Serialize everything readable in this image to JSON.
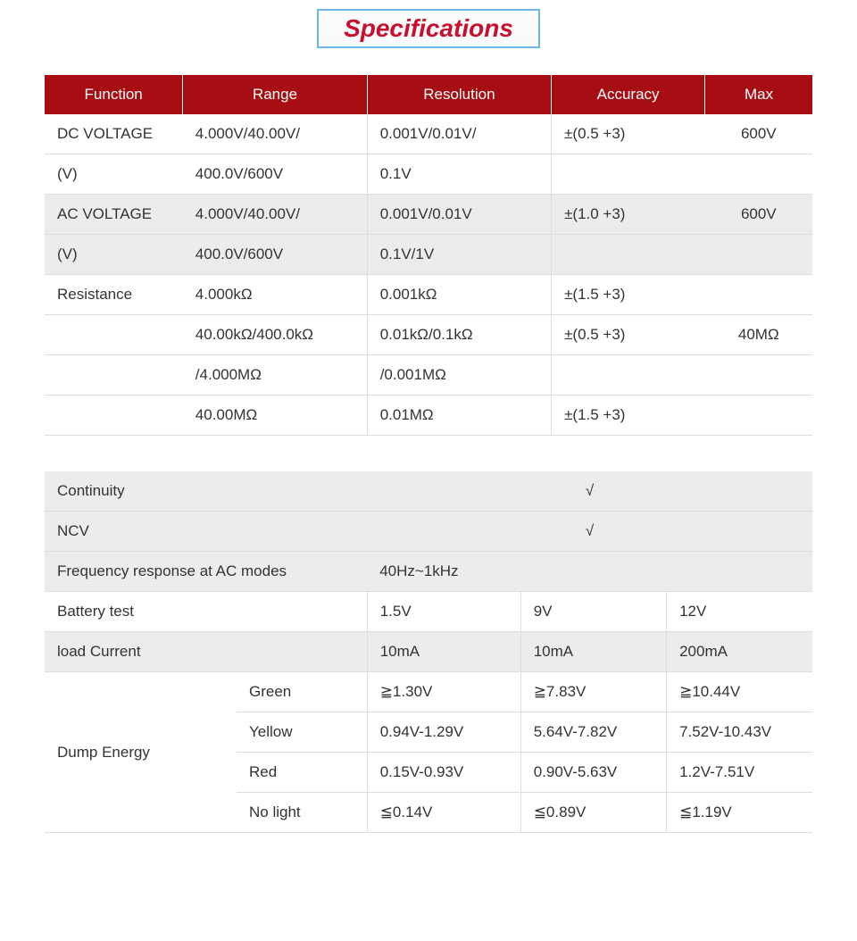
{
  "title": "Specifications",
  "colors": {
    "title_text": "#c8102e",
    "title_border": "#6bb8e6",
    "header_bg": "#a70e13",
    "header_text": "#ffffff",
    "row_alt_bg": "#ececec",
    "border": "#dddddd"
  },
  "table1": {
    "headers": [
      "Function",
      "Range",
      "Resolution",
      "Accuracy",
      "Max"
    ],
    "rows": [
      {
        "fn": "DC VOLTAGE",
        "range": "4.000V/40.00V/",
        "res": "0.001V/0.01V/",
        "acc": "±(0.5 +3)",
        "max": "600V",
        "alt": false
      },
      {
        "fn": "(V)",
        "range": "400.0V/600V",
        "res": "0.1V",
        "acc": "",
        "max": "",
        "alt": false
      },
      {
        "fn": "AC VOLTAGE",
        "range": "4.000V/40.00V/",
        "res": "0.001V/0.01V",
        "acc": "±(1.0 +3)",
        "max": "600V",
        "alt": true
      },
      {
        "fn": "(V)",
        "range": "400.0V/600V",
        "res": "0.1V/1V",
        "acc": "",
        "max": "",
        "alt": true
      },
      {
        "fn": "Resistance",
        "range": "4.000kΩ",
        "res": "0.001kΩ",
        "acc": "±(1.5 +3)",
        "max": "",
        "alt": false
      },
      {
        "fn": "",
        "range": "40.00kΩ/400.0kΩ",
        "res": "0.01kΩ/0.1kΩ",
        "acc": "±(0.5 +3)",
        "max": "40MΩ",
        "alt": false
      },
      {
        "fn": "",
        "range": "/4.000MΩ",
        "res": "/0.001MΩ",
        "acc": "",
        "max": "",
        "alt": false
      },
      {
        "fn": "",
        "range": "40.00MΩ",
        "res": "0.01MΩ",
        "acc": "±(1.5 +3)",
        "max": "",
        "alt": false
      }
    ]
  },
  "table2": {
    "continuity_label": "Continuity",
    "continuity_val": "√",
    "ncv_label": "NCV",
    "ncv_val": "√",
    "freq_label": "Frequency response at AC modes",
    "freq_val": "40Hz~1kHz",
    "battery_label": "Battery test",
    "battery_cols": [
      "1.5V",
      "9V",
      "12V"
    ],
    "load_label": "load Current",
    "load_vals": [
      "10mA",
      "10mA",
      "200mA"
    ],
    "dump_label": "Dump Energy",
    "dump_rows": [
      {
        "name": "Green",
        "v": [
          "≧1.30V",
          "≧7.83V",
          "≧10.44V"
        ]
      },
      {
        "name": "Yellow",
        "v": [
          "0.94V-1.29V",
          "5.64V-7.82V",
          "7.52V-10.43V"
        ]
      },
      {
        "name": "Red",
        "v": [
          "0.15V-0.93V",
          "0.90V-5.63V",
          "1.2V-7.51V"
        ]
      },
      {
        "name": "No light",
        "v": [
          "≦0.14V",
          "≦0.89V",
          "≦1.19V"
        ]
      }
    ]
  }
}
